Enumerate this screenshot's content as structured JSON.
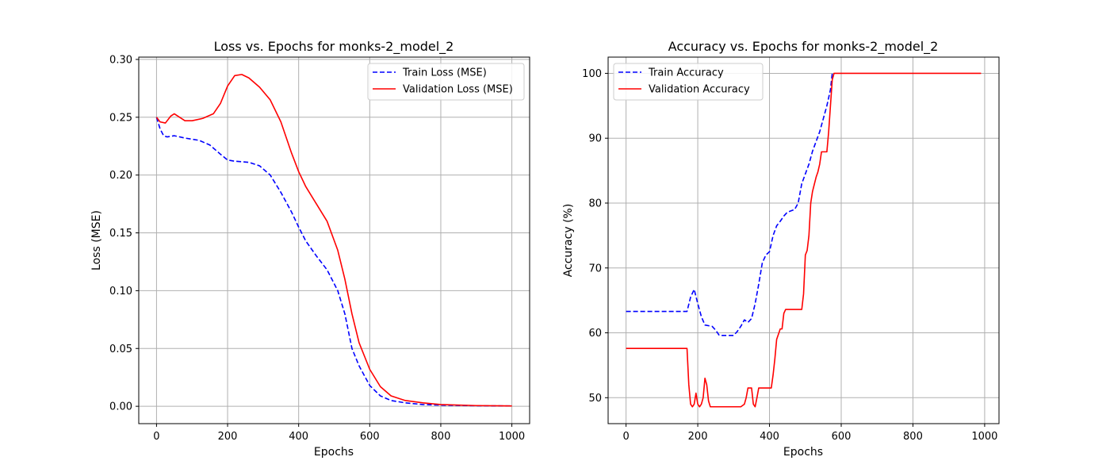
{
  "chart_data": [
    {
      "type": "line",
      "title": "Loss vs. Epochs for monks-2_model_2",
      "xlabel": "Epochs",
      "ylabel": "Loss (MSE)",
      "xlim": [
        -50,
        1050
      ],
      "ylim": [
        -0.015,
        0.302
      ],
      "xticks": [
        0,
        200,
        400,
        600,
        800,
        1000
      ],
      "yticks": [
        0.0,
        0.05,
        0.1,
        0.15,
        0.2,
        0.25,
        0.3
      ],
      "xtick_labels": [
        "0",
        "200",
        "400",
        "600",
        "800",
        "1000"
      ],
      "ytick_labels": [
        "0.00",
        "0.05",
        "0.10",
        "0.15",
        "0.20",
        "0.25",
        "0.30"
      ],
      "grid": true,
      "legend_position": "upper right",
      "series": [
        {
          "name": "Train Loss (MSE)",
          "color": "#0000ff",
          "style": "dashed",
          "x": [
            0,
            10,
            20,
            30,
            50,
            80,
            120,
            150,
            180,
            200,
            220,
            260,
            290,
            320,
            350,
            380,
            400,
            420,
            450,
            480,
            510,
            530,
            550,
            570,
            600,
            630,
            660,
            700,
            750,
            800,
            900,
            1000
          ],
          "y": [
            0.25,
            0.24,
            0.234,
            0.233,
            0.234,
            0.232,
            0.23,
            0.226,
            0.218,
            0.213,
            0.212,
            0.211,
            0.208,
            0.2,
            0.185,
            0.168,
            0.155,
            0.143,
            0.13,
            0.118,
            0.1,
            0.08,
            0.05,
            0.035,
            0.018,
            0.009,
            0.005,
            0.003,
            0.0015,
            0.001,
            0.0005,
            0.0003
          ]
        },
        {
          "name": "Validation Loss (MSE)",
          "color": "#ff0000",
          "style": "solid",
          "x": [
            0,
            10,
            25,
            40,
            50,
            65,
            80,
            100,
            130,
            160,
            180,
            200,
            220,
            240,
            260,
            290,
            320,
            350,
            380,
            400,
            420,
            450,
            480,
            510,
            530,
            550,
            570,
            600,
            630,
            660,
            700,
            750,
            800,
            900,
            1000
          ],
          "y": [
            0.25,
            0.246,
            0.245,
            0.251,
            0.253,
            0.25,
            0.247,
            0.247,
            0.249,
            0.253,
            0.262,
            0.277,
            0.286,
            0.287,
            0.284,
            0.276,
            0.265,
            0.246,
            0.219,
            0.203,
            0.19,
            0.175,
            0.16,
            0.135,
            0.11,
            0.08,
            0.055,
            0.032,
            0.017,
            0.009,
            0.005,
            0.003,
            0.0015,
            0.0006,
            0.0003
          ]
        }
      ]
    },
    {
      "type": "line",
      "title": "Accuracy vs. Epochs for monks-2_model_2",
      "xlabel": "Epochs",
      "ylabel": "Accuracy (%)",
      "xlim": [
        -50,
        1040
      ],
      "ylim": [
        46,
        102.5
      ],
      "xticks": [
        0,
        200,
        400,
        600,
        800,
        1000
      ],
      "yticks": [
        50,
        60,
        70,
        80,
        90,
        100
      ],
      "xtick_labels": [
        "0",
        "200",
        "400",
        "600",
        "800",
        "1000"
      ],
      "ytick_labels": [
        "50",
        "60",
        "70",
        "80",
        "90",
        "100"
      ],
      "grid": true,
      "legend_position": "upper left",
      "series": [
        {
          "name": "Train Accuracy",
          "color": "#0000ff",
          "style": "dashed",
          "x": [
            0,
            170,
            180,
            190,
            200,
            210,
            220,
            240,
            250,
            260,
            300,
            310,
            320,
            330,
            340,
            350,
            360,
            370,
            380,
            390,
            400,
            410,
            420,
            430,
            440,
            450,
            460,
            470,
            480,
            490,
            500,
            510,
            520,
            530,
            540,
            550,
            560,
            570,
            575
          ],
          "y": [
            63.3,
            63.3,
            65.5,
            66.7,
            64.5,
            62.5,
            61.2,
            61.0,
            60.4,
            59.6,
            59.6,
            60.2,
            61.0,
            62.0,
            61.6,
            62.2,
            64.5,
            67.5,
            70.8,
            72.0,
            72.5,
            75.0,
            76.5,
            77.2,
            78.0,
            78.6,
            78.8,
            79.0,
            80.0,
            83.0,
            84.5,
            86.0,
            88.0,
            89.5,
            91.0,
            93.0,
            95.0,
            97.5,
            100.0
          ]
        },
        {
          "name": "Validation Accuracy",
          "color": "#ff0000",
          "style": "solid",
          "x": [
            0,
            170,
            175,
            180,
            185,
            190,
            195,
            200,
            205,
            210,
            215,
            220,
            225,
            230,
            235,
            320,
            330,
            335,
            340,
            345,
            350,
            355,
            360,
            365,
            370,
            380,
            385,
            390,
            395,
            400,
            405,
            410,
            415,
            420,
            430,
            435,
            440,
            445,
            450,
            455,
            460,
            470,
            480,
            490,
            495,
            500,
            505,
            510,
            515,
            520,
            530,
            535,
            540,
            545,
            550,
            555,
            560,
            565,
            570,
            575,
            580,
            600,
            700,
            800,
            990
          ],
          "y": [
            57.6,
            57.6,
            52.0,
            49.0,
            48.6,
            49.0,
            50.7,
            49.0,
            48.6,
            49.0,
            50.0,
            53.0,
            52.0,
            49.5,
            48.6,
            48.6,
            49.0,
            50.0,
            51.5,
            51.5,
            51.5,
            49.0,
            48.6,
            50.0,
            51.5,
            51.5,
            51.5,
            51.5,
            51.5,
            51.5,
            51.5,
            53.5,
            56.0,
            59.0,
            60.6,
            60.6,
            63.0,
            63.6,
            63.6,
            63.6,
            63.6,
            63.6,
            63.6,
            63.6,
            66.0,
            72.0,
            72.7,
            75.0,
            80.0,
            81.8,
            84.0,
            84.8,
            86.0,
            87.9,
            87.9,
            87.9,
            87.9,
            91.0,
            95.0,
            99.0,
            100.0,
            100.0,
            100.0,
            100.0,
            100.0
          ]
        }
      ]
    }
  ]
}
